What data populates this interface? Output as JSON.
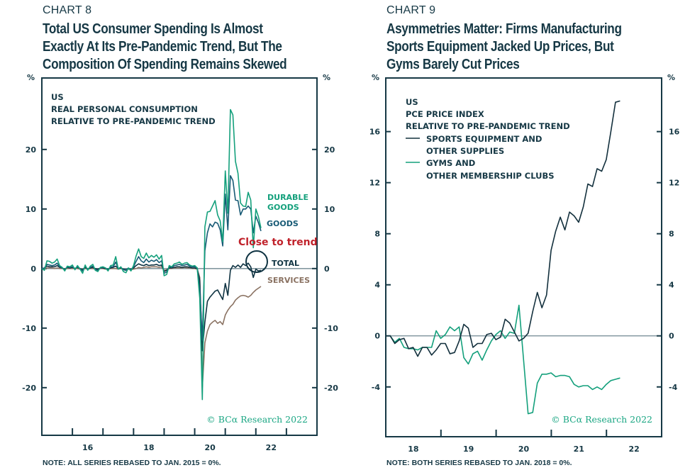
{
  "colors": {
    "ink": "#163845",
    "durable": "#14a07c",
    "goods": "#175a75",
    "total": "#0f3342",
    "services": "#8a7262",
    "sports": "#13303d",
    "gyms": "#14a07c",
    "red_note": "#c0222b",
    "zero_line": "#6f8790",
    "copyright": "#1aa683"
  },
  "chart_data": [
    {
      "id": "chart8",
      "type": "line",
      "label": "CHART 8",
      "title_lines": [
        "Total US Consumer Spending Is Almost",
        "Exactly At Its Pre-Pandemic Trend, But The",
        "Composition Of Spending Remains Skewed"
      ],
      "header_lines": [
        "US",
        "REAL PERSONAL CONSUMPTION",
        "RELATIVE TO PRE-PANDEMIC TREND"
      ],
      "y_unit_left": "%",
      "y_unit_right": "%",
      "ylim": [
        -28,
        32
      ],
      "yticks": [
        20,
        10,
        0,
        -10,
        -20
      ],
      "ytick_labels": [
        "20",
        "10",
        "0",
        "-10",
        "-20"
      ],
      "xlim": [
        2015.0,
        2024.0
      ],
      "xtick_positions": [
        2016,
        2017,
        2018,
        2019,
        2020,
        2021,
        2022,
        2023
      ],
      "xtick_labels": [
        {
          "text": "16",
          "at": 2016.5
        },
        {
          "text": "18",
          "at": 2018.5
        },
        {
          "text": "20",
          "at": 2020.5
        },
        {
          "text": "22",
          "at": 2022.5
        }
      ],
      "x_start": 2015.0,
      "x_step_months": 1,
      "zero_line": true,
      "annotation": {
        "text": "Close to trend",
        "circle_at": [
          2022.0,
          -0.6
        ]
      },
      "series": [
        {
          "name": "DURABLE GOODS",
          "label_lines": [
            "DURABLE",
            "GOODS"
          ],
          "color_key": "durable",
          "values": [
            0,
            -0.3,
            1.3,
            1.2,
            0.9,
            1.1,
            1.6,
            0.5,
            0.2,
            -0.4,
            0.4,
            0.3,
            0.6,
            -0.2,
            0.5,
            -0.1,
            -0.8,
            0.6,
            -0.3,
            0.4,
            0.7,
            -0.3,
            -0.5,
            0.2,
            0.3,
            0.1,
            -0.4,
            0.5,
            0.6,
            2.0,
            -0.1,
            0.3,
            -0.5,
            -0.7,
            0.1,
            -0.4,
            0.5,
            2.1,
            3.3,
            2.0,
            1.7,
            2.6,
            1.8,
            2.2,
            1.9,
            2.3,
            1.6,
            2.2,
            -1.2,
            -1.0,
            0.5,
            0.3,
            0.8,
            0.9,
            1.1,
            0.7,
            0.9,
            1.0,
            0.6,
            0.4,
            0.5,
            0.1,
            -5.0,
            -22.0,
            7.0,
            9.5,
            9.6,
            10.5,
            11.4,
            9.0,
            8.0,
            4.5,
            16.4,
            9.3,
            26.7,
            25.8,
            18.0,
            16.0,
            11.0,
            10.5,
            10.4,
            12.8,
            11.5,
            3.5,
            10.0,
            8.7,
            6.8
          ]
        },
        {
          "name": "GOODS",
          "label_lines": [
            "GOODS"
          ],
          "color_key": "goods",
          "values": [
            0,
            0.1,
            0.7,
            0.6,
            0.5,
            0.6,
            0.9,
            0.3,
            0.1,
            -0.2,
            0.3,
            0.2,
            0.3,
            0,
            0.3,
            0,
            -0.4,
            0.4,
            -0.1,
            0.2,
            0.4,
            -0.1,
            -0.3,
            0.1,
            0.2,
            0.1,
            -0.2,
            0.3,
            0.3,
            1.1,
            0,
            0.2,
            -0.2,
            -0.3,
            0.1,
            -0.2,
            0.3,
            1.2,
            2.0,
            1.3,
            1.0,
            1.6,
            1.1,
            1.4,
            1.2,
            1.5,
            1.0,
            1.3,
            -0.8,
            -0.6,
            0.3,
            0.2,
            0.5,
            0.6,
            0.7,
            0.5,
            0.6,
            0.7,
            0.4,
            0.3,
            0.3,
            0.1,
            -3.5,
            -12.0,
            3.0,
            6.0,
            7.5,
            7.0,
            7.8,
            7.6,
            6.5,
            3.8,
            12.5,
            6.5,
            15.6,
            14.8,
            11.5,
            11.4,
            9.0,
            10.0,
            10.0,
            10.5,
            10.0,
            6.0,
            8.8,
            7.7,
            6.3
          ]
        },
        {
          "name": "TOTAL",
          "label_lines": [
            "TOTAL"
          ],
          "color_key": "total",
          "values": [
            0,
            0.1,
            0.4,
            0.3,
            0.3,
            0.3,
            0.5,
            0.2,
            0.1,
            -0.1,
            0.2,
            0.1,
            0.2,
            0,
            0.2,
            0,
            -0.2,
            0.2,
            -0.1,
            0.1,
            0.2,
            0,
            -0.1,
            0.1,
            0.1,
            0,
            -0.1,
            0.1,
            0.2,
            0.4,
            0,
            0.1,
            -0.1,
            -0.2,
            0,
            -0.1,
            0.1,
            0.5,
            0.8,
            0.6,
            0.5,
            0.7,
            0.5,
            0.6,
            0.6,
            0.7,
            0.5,
            0.6,
            -0.5,
            -0.3,
            0.1,
            0.1,
            0.2,
            0.3,
            0.3,
            0.2,
            0.3,
            0.3,
            0.2,
            0.1,
            0.1,
            0,
            -2.0,
            -13.8,
            -9.0,
            -5.5,
            -4.8,
            -4.3,
            -3.8,
            -3.6,
            -4.4,
            -5.2,
            -2.5,
            -4.5,
            -0.3,
            0.5,
            0.2,
            0.6,
            0.2,
            0.8,
            0.5,
            0.9,
            0.3,
            -1.5,
            -0.1,
            -0.4,
            -0.3
          ]
        },
        {
          "name": "SERVICES",
          "label_lines": [
            "SERVICES"
          ],
          "color_key": "services",
          "values": [
            0,
            0,
            0.1,
            0.1,
            0.1,
            0,
            0.1,
            0,
            0,
            -0.1,
            0,
            0,
            0,
            0,
            0,
            -0.1,
            -0.1,
            0,
            -0.1,
            0,
            0,
            -0.1,
            -0.1,
            0,
            0,
            -0.1,
            -0.1,
            0,
            0,
            0,
            -0.1,
            0,
            -0.1,
            -0.2,
            -0.1,
            -0.2,
            -0.1,
            0,
            0.2,
            0.1,
            0.2,
            0.3,
            0.2,
            0.3,
            0.3,
            0.3,
            0.2,
            0.3,
            -0.3,
            -0.2,
            0,
            0,
            0.1,
            0.1,
            0.1,
            0.1,
            0.2,
            0.1,
            0.1,
            0,
            0,
            -0.1,
            -1.5,
            -20.0,
            -12.5,
            -10.5,
            -9.4,
            -9.0,
            -8.7,
            -9.2,
            -8.9,
            -9.4,
            -7.8,
            -7.0,
            -6.4,
            -6.0,
            -5.3,
            -4.9,
            -4.6,
            -4.5,
            -4.6,
            -4.8,
            -4.5,
            -4.0,
            -3.6,
            -3.3,
            -3.0
          ]
        }
      ],
      "copyright": "© BCα Research 2022",
      "note": "NOTE: ALL SERIES REBASED TO JAN. 2015 = 0%."
    },
    {
      "id": "chart9",
      "type": "line",
      "label": "CHART 9",
      "title_lines": [
        "Asymmetries Matter: Firms Manufacturing",
        "Sports Equipment Jacked Up Prices, But",
        "Gyms Barely Cut Prices"
      ],
      "header_lines": [
        "US",
        "PCE PRICE INDEX",
        "RELATIVE TO PRE-PANDEMIC TREND"
      ],
      "y_unit_left": "%",
      "y_unit_right": "%",
      "ylim": [
        -7.9,
        20.2
      ],
      "yticks": [
        16,
        12,
        8,
        4,
        0,
        -4
      ],
      "ytick_labels": [
        "16",
        "12",
        "8",
        "4",
        "0",
        "-4"
      ],
      "xlim": [
        2017.92,
        2022.92
      ],
      "xtick_positions": [
        2018.92,
        2019.92,
        2020.92,
        2021.92
      ],
      "xtick_labels": [
        {
          "text": "18",
          "at": 2018.42
        },
        {
          "text": "19",
          "at": 2019.42
        },
        {
          "text": "20",
          "at": 2020.42
        },
        {
          "text": "21",
          "at": 2021.42
        },
        {
          "text": "22",
          "at": 2022.42
        }
      ],
      "x_start": 2018.0,
      "x_step_months": 1,
      "zero_line": true,
      "series": [
        {
          "name": "SPORTS EQUIPMENT AND OTHER SUPPLIES",
          "label_lines": [
            "SPORTS EQUIPMENT AND",
            "OTHER SUPPLIES"
          ],
          "color_key": "sports",
          "values": [
            0,
            -0.6,
            -0.3,
            -0.2,
            -1.0,
            -0.9,
            -1.6,
            -0.9,
            -0.9,
            -1.5,
            -1.1,
            -0.6,
            -0.6,
            -1.4,
            -1.3,
            -0.4,
            0.9,
            0.6,
            -0.9,
            -0.6,
            -0.6,
            0.1,
            0.2,
            -0.3,
            -0.1,
            1.3,
            1.0,
            0.3,
            -0.4,
            -0.2,
            0.2,
            1.9,
            3.4,
            2.2,
            3.2,
            6.7,
            8.2,
            9.3,
            8.3,
            9.7,
            9.4,
            8.9,
            10.1,
            11.9,
            11.7,
            13.1,
            12.9,
            13.8,
            16.0,
            18.3,
            18.4
          ]
        },
        {
          "name": "GYMS AND OTHER MEMBERSHIP CLUBS",
          "label_lines": [
            "GYMS AND",
            "OTHER MEMBERSHIP CLUBS"
          ],
          "color_key": "gyms",
          "values": [
            0,
            -0.5,
            -0.2,
            -0.9,
            -1.0,
            -1.0,
            -1.1,
            -0.9,
            -0.9,
            -0.9,
            0.4,
            -0.2,
            0.1,
            0.7,
            0.4,
            0.7,
            -1.7,
            -2.2,
            -1.4,
            -1.2,
            -1.9,
            -1.1,
            -0.4,
            0.1,
            0.4,
            -0.2,
            0.3,
            0.2,
            2.4,
            -1.8,
            -6.1,
            -6.0,
            -3.7,
            -3.0,
            -3.0,
            -2.9,
            -3.2,
            -3.1,
            -3.1,
            -3.2,
            -3.8,
            -4.0,
            -3.9,
            -3.9,
            -4.2,
            -4.0,
            -4.2,
            -3.8,
            -3.5,
            -3.4,
            -3.3
          ]
        }
      ],
      "copyright": "© BCα Research 2022",
      "note": "NOTE: BOTH SERIES REBASED TO JAN. 2018 = 0%."
    }
  ]
}
